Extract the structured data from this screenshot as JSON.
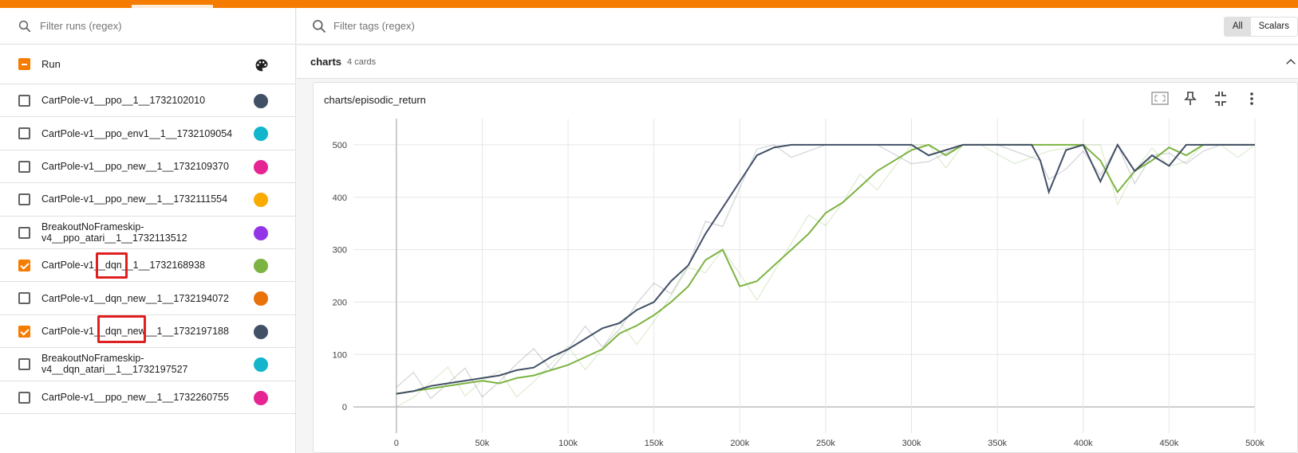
{
  "left_panel": {
    "filter_placeholder": "Filter runs (regex)",
    "header_label": "Run",
    "runs": [
      {
        "name": "CartPole-v1__ppo__1__1732102010",
        "checked": false,
        "color": "#425066"
      },
      {
        "name": "CartPole-v1__ppo_env1__1__1732109054",
        "checked": false,
        "color": "#12b5cb"
      },
      {
        "name": "CartPole-v1__ppo_new__1__1732109370",
        "checked": false,
        "color": "#e52592"
      },
      {
        "name": "CartPole-v1__ppo_new__1__1732111554",
        "checked": false,
        "color": "#f9ab00"
      },
      {
        "name": "BreakoutNoFrameskip-v4__ppo_atari__1__1732113512",
        "checked": false,
        "color": "#9334e6"
      },
      {
        "name": "CartPole-v1__dqn__1__1732168938",
        "checked": true,
        "color": "#7cb342"
      },
      {
        "name": "CartPole-v1__dqn_new__1__1732194072",
        "checked": false,
        "color": "#e8710a"
      },
      {
        "name": "CartPole-v1__dqn_new__1__1732197188",
        "checked": true,
        "color": "#425066"
      },
      {
        "name": "BreakoutNoFrameskip-v4__dqn_atari__1__1732197527",
        "checked": false,
        "color": "#12b5cb"
      },
      {
        "name": "CartPole-v1__ppo_new__1__1732260755",
        "checked": false,
        "color": "#e52592"
      }
    ]
  },
  "right_panel": {
    "tag_filter_placeholder": "Filter tags (regex)",
    "toggle": {
      "all": "All",
      "scalars": "Scalars"
    },
    "group": {
      "title": "charts",
      "count": "4 cards"
    },
    "card": {
      "title": "charts/episodic_return"
    }
  },
  "colors": {
    "accent": "#f57c00",
    "series_dqn": "#7cb342",
    "series_dqn_new": "#425066"
  },
  "chart_data": {
    "type": "line",
    "title": "charts/episodic_return",
    "xlabel": "",
    "ylabel": "",
    "x_ticks": [
      "0",
      "50k",
      "100k",
      "150k",
      "200k",
      "250k",
      "300k",
      "350k",
      "400k",
      "450k",
      "500k"
    ],
    "y_ticks": [
      "0",
      "100",
      "200",
      "300",
      "400",
      "500"
    ],
    "xlim": [
      -25000,
      500000
    ],
    "ylim": [
      -50,
      550
    ],
    "series": [
      {
        "name": "CartPole-v1__dqn__1__1732168938",
        "color": "#7cb342",
        "x": [
          0,
          10000,
          20000,
          30000,
          40000,
          50000,
          60000,
          70000,
          80000,
          90000,
          100000,
          110000,
          120000,
          130000,
          140000,
          150000,
          160000,
          170000,
          180000,
          190000,
          200000,
          210000,
          220000,
          230000,
          240000,
          250000,
          260000,
          270000,
          280000,
          290000,
          300000,
          310000,
          320000,
          330000,
          340000,
          360000,
          380000,
          400000,
          410000,
          420000,
          430000,
          440000,
          450000,
          460000,
          470000,
          480000,
          490000,
          500000
        ],
        "y": [
          25,
          30,
          35,
          40,
          45,
          50,
          45,
          55,
          60,
          70,
          80,
          95,
          110,
          140,
          155,
          175,
          200,
          230,
          280,
          300,
          230,
          240,
          270,
          300,
          330,
          370,
          390,
          420,
          450,
          470,
          490,
          500,
          480,
          500,
          500,
          500,
          500,
          500,
          470,
          410,
          450,
          470,
          495,
          480,
          500,
          500,
          500,
          500
        ]
      },
      {
        "name": "CartPole-v1__dqn_new__1__1732197188",
        "color": "#425066",
        "x": [
          0,
          10000,
          20000,
          30000,
          40000,
          50000,
          60000,
          70000,
          80000,
          90000,
          100000,
          110000,
          120000,
          130000,
          140000,
          150000,
          160000,
          170000,
          180000,
          190000,
          200000,
          210000,
          220000,
          230000,
          250000,
          280000,
          300000,
          310000,
          330000,
          350000,
          370000,
          375000,
          380000,
          390000,
          400000,
          410000,
          420000,
          430000,
          440000,
          450000,
          460000,
          470000,
          480000,
          500000
        ],
        "y": [
          25,
          30,
          40,
          45,
          50,
          55,
          60,
          70,
          75,
          95,
          110,
          130,
          150,
          160,
          185,
          200,
          240,
          270,
          330,
          380,
          430,
          480,
          495,
          500,
          500,
          500,
          500,
          480,
          500,
          500,
          500,
          470,
          410,
          490,
          500,
          430,
          500,
          450,
          480,
          460,
          500,
          500,
          500,
          500
        ]
      }
    ]
  }
}
